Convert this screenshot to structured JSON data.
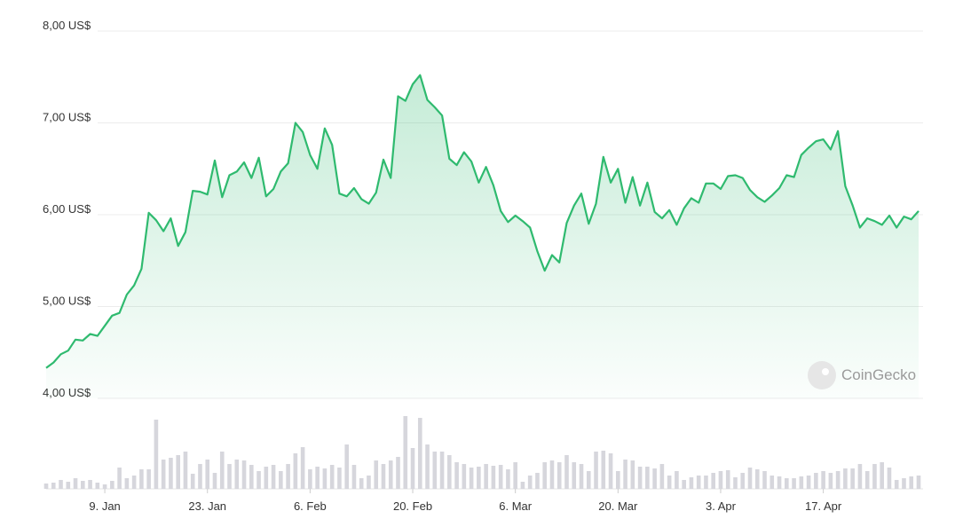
{
  "chart_data": {
    "type": "line",
    "x": [
      0,
      1,
      2,
      3,
      4,
      5,
      6,
      7,
      8,
      9,
      10,
      11,
      12,
      13,
      14,
      15,
      16,
      17,
      18,
      19,
      20,
      21,
      22,
      23,
      24,
      25,
      26,
      27,
      28,
      29,
      30,
      31,
      32,
      33,
      34,
      35,
      36,
      37,
      38,
      39,
      40,
      41,
      42,
      43,
      44,
      45,
      46,
      47,
      48,
      49,
      50,
      51,
      52,
      53,
      54,
      55,
      56,
      57,
      58,
      59,
      60,
      61,
      62,
      63,
      64,
      65,
      66,
      67,
      68,
      69,
      70,
      71,
      72,
      73,
      74,
      75,
      76,
      77,
      78,
      79,
      80,
      81,
      82,
      83,
      84,
      85,
      86,
      87,
      88,
      89,
      90,
      91,
      92,
      93,
      94,
      95,
      96,
      97,
      98,
      99,
      100,
      101,
      102,
      103,
      104,
      105,
      106,
      107,
      108,
      109,
      110,
      111,
      112,
      113,
      114,
      115,
      116,
      117,
      118,
      119
    ],
    "series": [
      {
        "name": "Price",
        "color": "#2fba6f",
        "values": [
          4.33,
          4.39,
          4.48,
          4.52,
          4.64,
          4.63,
          4.7,
          4.68,
          4.79,
          4.9,
          4.93,
          5.13,
          5.23,
          5.41,
          6.02,
          5.94,
          5.82,
          5.96,
          5.66,
          5.81,
          6.26,
          6.25,
          6.22,
          6.59,
          6.19,
          6.43,
          6.47,
          6.57,
          6.4,
          6.62,
          6.2,
          6.28,
          6.47,
          6.56,
          7.0,
          6.9,
          6.65,
          6.5,
          6.94,
          6.76,
          6.23,
          6.2,
          6.29,
          6.17,
          6.12,
          6.24,
          6.6,
          6.4,
          7.29,
          7.24,
          7.42,
          7.52,
          7.25,
          7.17,
          7.08,
          6.61,
          6.54,
          6.68,
          6.58,
          6.35,
          6.52,
          6.32,
          6.04,
          5.92,
          5.99,
          5.93,
          5.86,
          5.6,
          5.39,
          5.56,
          5.48,
          5.91,
          6.1,
          6.23,
          5.9,
          6.12,
          6.63,
          6.35,
          6.5,
          6.13,
          6.41,
          6.1,
          6.35,
          6.03,
          5.96,
          6.05,
          5.89,
          6.07,
          6.18,
          6.13,
          6.34,
          6.34,
          6.28,
          6.42,
          6.43,
          6.4,
          6.27,
          6.19,
          6.14,
          6.21,
          6.29,
          6.43,
          6.41,
          6.65,
          6.73,
          6.8,
          6.82,
          6.71,
          6.91,
          6.31,
          6.1,
          5.86,
          5.96,
          5.93,
          5.89,
          5.99,
          5.86,
          5.98,
          5.95,
          6.04
        ]
      },
      {
        "name": "Volume",
        "color": "#d6d6dc",
        "values": [
          6,
          7,
          10,
          8,
          12,
          9,
          10,
          7,
          5,
          9,
          24,
          12,
          15,
          22,
          22,
          78,
          33,
          35,
          38,
          42,
          17,
          28,
          33,
          18,
          42,
          28,
          33,
          32,
          27,
          20,
          25,
          27,
          20,
          28,
          40,
          47,
          22,
          25,
          23,
          27,
          24,
          50,
          27,
          12,
          15,
          32,
          28,
          32,
          36,
          82,
          46,
          80,
          50,
          42,
          42,
          38,
          30,
          28,
          24,
          25,
          28,
          26,
          27,
          22,
          30,
          8,
          15,
          18,
          30,
          32,
          30,
          38,
          30,
          28,
          20,
          42,
          43,
          40,
          20,
          33,
          32,
          25,
          25,
          23,
          28,
          15,
          20,
          10,
          13,
          15,
          15,
          18,
          20,
          21,
          13,
          18,
          24,
          22,
          20,
          15,
          14,
          12,
          12,
          14,
          15,
          18,
          20,
          18,
          20,
          23,
          23,
          28,
          20,
          28,
          30,
          24,
          10,
          12,
          14,
          15
        ]
      }
    ],
    "xlim": [
      0,
      119
    ],
    "xticks": [
      {
        "value": 8,
        "label": "9. Jan"
      },
      {
        "value": 22,
        "label": "23. Jan"
      },
      {
        "value": 36,
        "label": "6. Feb"
      },
      {
        "value": 50,
        "label": "20. Feb"
      },
      {
        "value": 64,
        "label": "6. Mar"
      },
      {
        "value": 78,
        "label": "20. Mar"
      },
      {
        "value": 92,
        "label": "3. Apr"
      },
      {
        "value": 106,
        "label": "17. Apr"
      }
    ],
    "ylim": [
      4,
      8
    ],
    "yticks": [
      {
        "value": 4,
        "label": "4,00 US$"
      },
      {
        "value": 5,
        "label": "5,00 US$"
      },
      {
        "value": 6,
        "label": "6,00 US$"
      },
      {
        "value": 7,
        "label": "7,00 US$"
      },
      {
        "value": 8,
        "label": "8,00 US$"
      }
    ],
    "grid": true,
    "watermark": "CoinGecko"
  }
}
